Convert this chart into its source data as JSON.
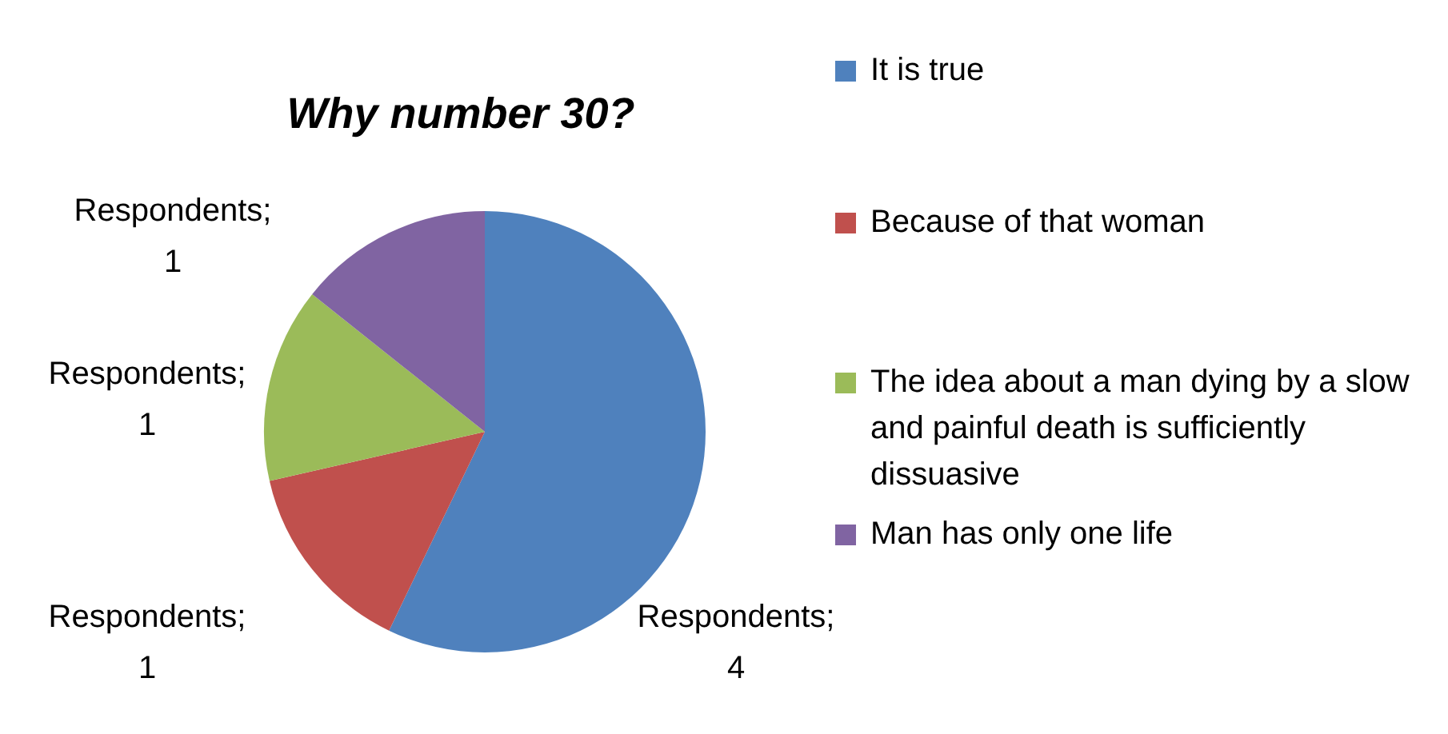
{
  "chart_data": {
    "type": "pie",
    "title": "Why number 30?",
    "categories": [
      "It is true",
      "Because of that woman",
      "The idea about a man dying by a slow and painful death is sufficiently dissuasive",
      "Man has only one life"
    ],
    "values": [
      4,
      1,
      1,
      1
    ],
    "colors": [
      "#4f81bd",
      "#c0504d",
      "#9bbb59",
      "#8064a2"
    ],
    "value_labels": [
      "Respondents; 4",
      "Respondents; 1",
      "Respondents; 1",
      "Respondents; 1"
    ],
    "legend": "right"
  }
}
